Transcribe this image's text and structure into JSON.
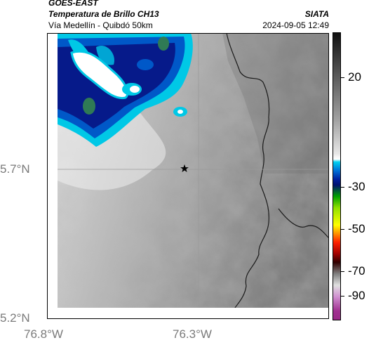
{
  "header": {
    "satellite": "GOES-EAST",
    "product": "Temperatura de Brillo CH13",
    "route": "Vía Medellín - Quibdó 50km",
    "source": "SIATA",
    "datetime": "2024-09-05 12:49"
  },
  "axes": {
    "y_ticks": [
      "5.7°N",
      "5.2°N"
    ],
    "x_ticks": [
      "76.8°W",
      "76.3°W"
    ]
  },
  "colorbar": {
    "labels": [
      "20",
      "-30",
      "-50",
      "-70",
      "-90"
    ],
    "colors": [
      "#2a2a2a",
      "#7a7a7a",
      "#cfcfcf",
      "#ffffff",
      "#00c8e6",
      "#0050c8",
      "#001070",
      "#00a000",
      "#ffff00",
      "#ff6000",
      "#c00000",
      "#300000",
      "#e0e0e0",
      "#a03090"
    ]
  },
  "map": {
    "marker_icon": "star-icon",
    "cloud_colors": [
      "#00c8e6",
      "#0058c8",
      "#061a8a",
      "#2f7a55"
    ]
  }
}
